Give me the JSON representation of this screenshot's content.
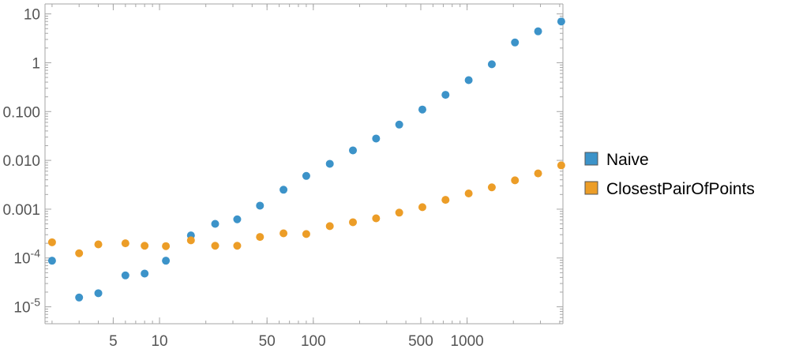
{
  "chart_data": {
    "type": "scatter",
    "title": "",
    "xlabel": "",
    "ylabel": "",
    "x_scale": "log",
    "y_scale": "log",
    "xlim": [
      1.8,
      4200
    ],
    "ylim": [
      4.5e-06,
      16
    ],
    "grid": false,
    "legend_position": "right",
    "x_ticks": [
      {
        "value": 5,
        "label": "5"
      },
      {
        "value": 10,
        "label": "10"
      },
      {
        "value": 50,
        "label": "50"
      },
      {
        "value": 100,
        "label": "100"
      },
      {
        "value": 500,
        "label": "500"
      },
      {
        "value": 1000,
        "label": "1000"
      }
    ],
    "y_ticks": [
      {
        "value": 1e-05,
        "base": "10",
        "exp": "-5",
        "label": "10^-5"
      },
      {
        "value": 0.0001,
        "base": "10",
        "exp": "-4",
        "label": "10^-4"
      },
      {
        "value": 0.001,
        "label": "0.001"
      },
      {
        "value": 0.01,
        "label": "0.010"
      },
      {
        "value": 0.1,
        "label": "0.100"
      },
      {
        "value": 1,
        "label": "1"
      },
      {
        "value": 10,
        "label": "10"
      }
    ],
    "series": [
      {
        "name": "Naive",
        "color": "#3c93c9",
        "points": [
          [
            2,
            8.8e-05
          ],
          [
            3,
            1.55e-05
          ],
          [
            4,
            1.9e-05
          ],
          [
            6,
            4.4e-05
          ],
          [
            8,
            4.8e-05
          ],
          [
            11,
            8.8e-05
          ],
          [
            16,
            0.00029
          ],
          [
            23,
            0.0005
          ],
          [
            32,
            0.00062
          ],
          [
            45,
            0.00118
          ],
          [
            64,
            0.0025
          ],
          [
            90,
            0.0048
          ],
          [
            128,
            0.0085
          ],
          [
            181,
            0.016
          ],
          [
            256,
            0.028
          ],
          [
            362,
            0.054
          ],
          [
            512,
            0.11
          ],
          [
            724,
            0.22
          ],
          [
            1024,
            0.44
          ],
          [
            1448,
            0.93
          ],
          [
            2048,
            2.6
          ],
          [
            2896,
            4.4
          ],
          [
            4096,
            7.0
          ]
        ]
      },
      {
        "name": "ClosestPairOfPoints",
        "color": "#ec9d27",
        "points": [
          [
            2,
            0.00021
          ],
          [
            3,
            0.000125
          ],
          [
            4,
            0.00019
          ],
          [
            6,
            0.0002
          ],
          [
            8,
            0.000178
          ],
          [
            11,
            0.000175
          ],
          [
            16,
            0.00023
          ],
          [
            23,
            0.000178
          ],
          [
            32,
            0.000178
          ],
          [
            45,
            0.00027
          ],
          [
            64,
            0.00032
          ],
          [
            90,
            0.00031
          ],
          [
            128,
            0.00045
          ],
          [
            181,
            0.00054
          ],
          [
            256,
            0.00065
          ],
          [
            362,
            0.00085
          ],
          [
            512,
            0.0011
          ],
          [
            724,
            0.00155
          ],
          [
            1024,
            0.0021
          ],
          [
            1448,
            0.0028
          ],
          [
            2048,
            0.0039
          ],
          [
            2896,
            0.0054
          ],
          [
            4096,
            0.0079
          ]
        ]
      }
    ]
  }
}
